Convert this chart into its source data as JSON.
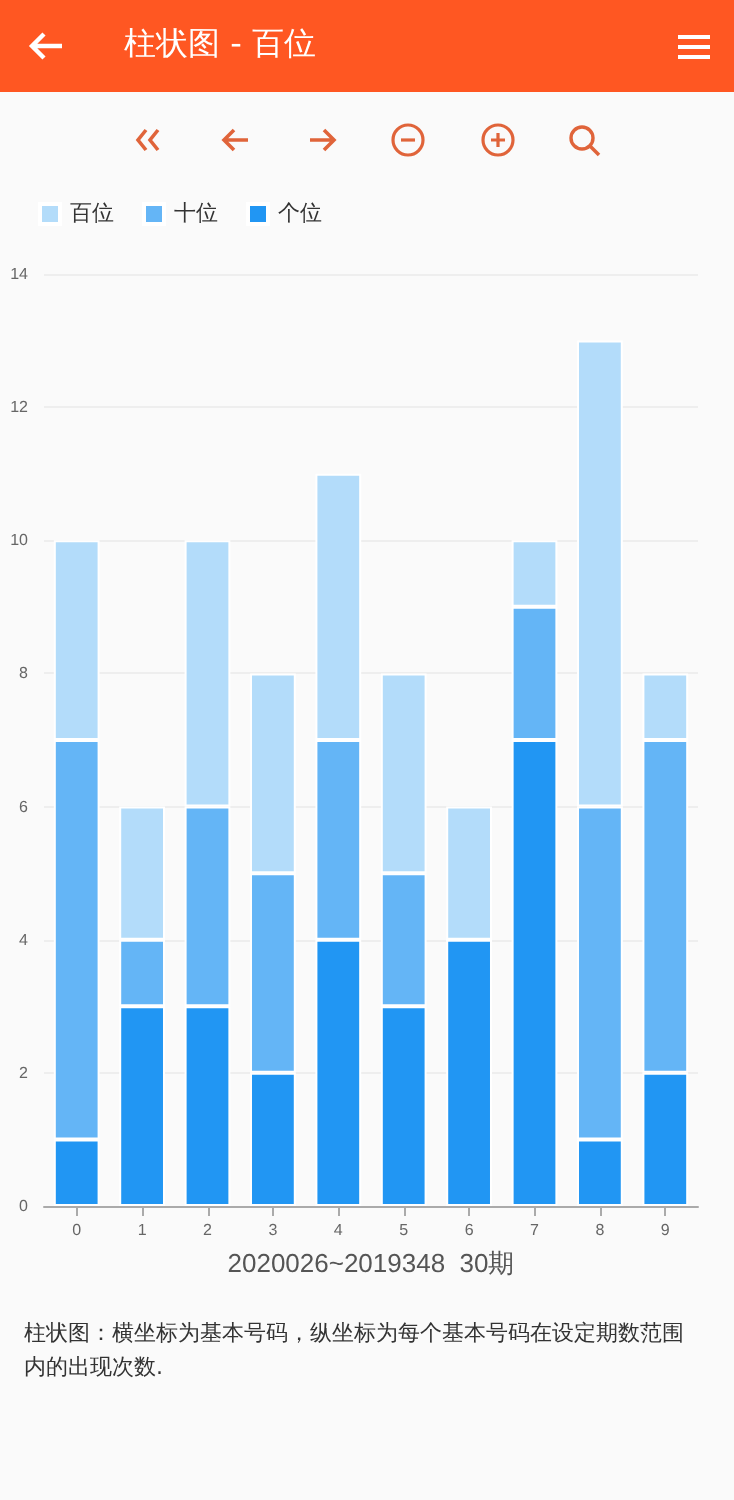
{
  "chart_data": {
    "type": "bar",
    "title": "柱状图 - 百位",
    "xlabel": "2020026~2019348  30期",
    "categories": [
      "0",
      "1",
      "2",
      "3",
      "4",
      "5",
      "6",
      "7",
      "8",
      "9"
    ],
    "stacked": true,
    "series": [
      {
        "name": "个位",
        "color": "#2196f3",
        "values": [
          1,
          3,
          3,
          2,
          4,
          3,
          4,
          7,
          1,
          2
        ]
      },
      {
        "name": "十位",
        "color": "#64b5f6",
        "values": [
          6,
          1,
          3,
          3,
          3,
          2,
          0,
          2,
          5,
          5
        ]
      },
      {
        "name": "百位",
        "color": "#b3dcfa",
        "values": [
          3,
          2,
          4,
          3,
          4,
          3,
          2,
          1,
          7,
          1
        ]
      }
    ],
    "ylim": [
      0,
      14
    ],
    "yticks": [
      0,
      2,
      4,
      6,
      8,
      10,
      12,
      14
    ],
    "grid": "y",
    "legend": "top left",
    "annotations": [
      "柱状图：横坐标为基本号码，纵坐标为每个基本号码在设定期数范围内的出现次数."
    ]
  }
}
